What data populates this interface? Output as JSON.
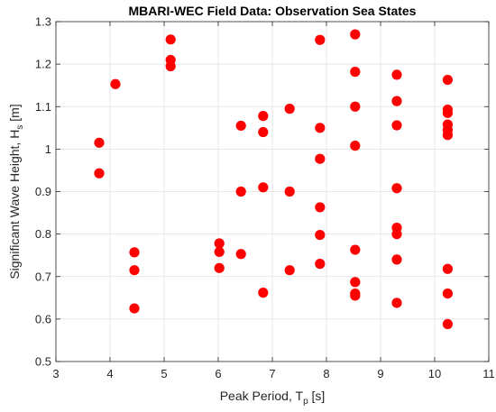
{
  "chart_data": {
    "type": "scatter",
    "title": "MBARI-WEC Field Data: Observation Sea States",
    "xlabel": {
      "text": "Peak Period, T",
      "sub": "p",
      "suffix": " [s]"
    },
    "ylabel": {
      "text": "Significant Wave Height, H",
      "sub": "s",
      "suffix": " [m]"
    },
    "xlim": [
      3,
      11
    ],
    "ylim": [
      0.5,
      1.3
    ],
    "xticks": [
      3,
      4,
      5,
      6,
      7,
      8,
      9,
      10,
      11
    ],
    "yticks": [
      0.5,
      0.6,
      0.7,
      0.8,
      0.9,
      1.0,
      1.1,
      1.2,
      1.3
    ],
    "xtick_labels": [
      "3",
      "4",
      "5",
      "6",
      "7",
      "8",
      "9",
      "10",
      "11"
    ],
    "ytick_labels": [
      "0.5",
      "0.6",
      "0.7",
      "0.8",
      "0.9",
      "1",
      "1.1",
      "1.2",
      "1.3"
    ],
    "grid": true,
    "marker_color": "#ff0000",
    "points": [
      {
        "x": 3.8,
        "y": 1.015
      },
      {
        "x": 3.8,
        "y": 0.943
      },
      {
        "x": 4.1,
        "y": 1.153
      },
      {
        "x": 4.45,
        "y": 0.757
      },
      {
        "x": 4.45,
        "y": 0.715
      },
      {
        "x": 4.45,
        "y": 0.625
      },
      {
        "x": 5.12,
        "y": 1.258
      },
      {
        "x": 5.12,
        "y": 1.21
      },
      {
        "x": 5.12,
        "y": 1.195
      },
      {
        "x": 6.02,
        "y": 0.778
      },
      {
        "x": 6.02,
        "y": 0.758
      },
      {
        "x": 6.02,
        "y": 0.72
      },
      {
        "x": 6.42,
        "y": 1.055
      },
      {
        "x": 6.42,
        "y": 0.9
      },
      {
        "x": 6.42,
        "y": 0.753
      },
      {
        "x": 6.83,
        "y": 1.078
      },
      {
        "x": 6.83,
        "y": 1.04
      },
      {
        "x": 6.83,
        "y": 0.91
      },
      {
        "x": 6.83,
        "y": 0.662
      },
      {
        "x": 7.32,
        "y": 1.095
      },
      {
        "x": 7.32,
        "y": 0.9
      },
      {
        "x": 7.32,
        "y": 0.715
      },
      {
        "x": 7.88,
        "y": 1.257
      },
      {
        "x": 7.88,
        "y": 1.05
      },
      {
        "x": 7.88,
        "y": 0.977
      },
      {
        "x": 7.88,
        "y": 0.863
      },
      {
        "x": 7.88,
        "y": 0.798
      },
      {
        "x": 7.88,
        "y": 0.73
      },
      {
        "x": 8.53,
        "y": 1.27
      },
      {
        "x": 8.53,
        "y": 1.182
      },
      {
        "x": 8.53,
        "y": 1.1
      },
      {
        "x": 8.53,
        "y": 1.008
      },
      {
        "x": 8.53,
        "y": 0.763
      },
      {
        "x": 8.53,
        "y": 0.687
      },
      {
        "x": 8.53,
        "y": 0.66
      },
      {
        "x": 8.53,
        "y": 0.655
      },
      {
        "x": 9.3,
        "y": 1.175
      },
      {
        "x": 9.3,
        "y": 1.113
      },
      {
        "x": 9.3,
        "y": 1.056
      },
      {
        "x": 9.3,
        "y": 0.908
      },
      {
        "x": 9.3,
        "y": 0.815
      },
      {
        "x": 9.3,
        "y": 0.8
      },
      {
        "x": 9.3,
        "y": 0.74
      },
      {
        "x": 9.3,
        "y": 0.638
      },
      {
        "x": 10.24,
        "y": 1.163
      },
      {
        "x": 10.24,
        "y": 1.093
      },
      {
        "x": 10.24,
        "y": 1.085
      },
      {
        "x": 10.24,
        "y": 1.058
      },
      {
        "x": 10.24,
        "y": 1.045
      },
      {
        "x": 10.24,
        "y": 1.033
      },
      {
        "x": 10.24,
        "y": 0.718
      },
      {
        "x": 10.24,
        "y": 0.66
      },
      {
        "x": 10.24,
        "y": 0.588
      }
    ]
  }
}
